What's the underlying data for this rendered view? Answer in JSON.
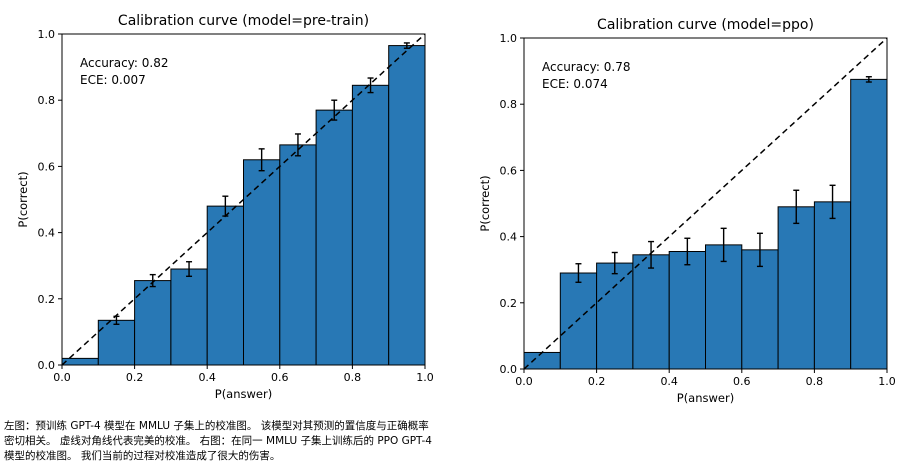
{
  "chart_data": [
    {
      "type": "bar",
      "title": "Calibration curve (model=pre-train)",
      "xlabel": "P(answer)",
      "ylabel": "P(correct)",
      "xlim": [
        0,
        1
      ],
      "ylim": [
        0,
        1
      ],
      "xticks": [
        "0.0",
        "0.2",
        "0.4",
        "0.6",
        "0.8",
        "1.0"
      ],
      "yticks": [
        "0.0",
        "0.2",
        "0.4",
        "0.6",
        "0.8",
        "1.0"
      ],
      "bin_edges": [
        0,
        0.1,
        0.2,
        0.3,
        0.4,
        0.5,
        0.6,
        0.7,
        0.8,
        0.9,
        1.0
      ],
      "values": [
        0.02,
        0.135,
        0.255,
        0.29,
        0.48,
        0.62,
        0.665,
        0.77,
        0.845,
        0.965
      ],
      "errors": [
        0,
        0.012,
        0.018,
        0.022,
        0.03,
        0.033,
        0.033,
        0.03,
        0.022,
        0.008
      ],
      "annotations": [
        "Accuracy: 0.82",
        "ECE: 0.007"
      ],
      "diagonal": "dashed",
      "bar_color": "#2878b5"
    },
    {
      "type": "bar",
      "title": "Calibration curve (model=ppo)",
      "xlabel": "P(answer)",
      "ylabel": "P(correct)",
      "xlim": [
        0,
        1
      ],
      "ylim": [
        0,
        1
      ],
      "xticks": [
        "0.0",
        "0.2",
        "0.4",
        "0.6",
        "0.8",
        "1.0"
      ],
      "yticks": [
        "0.0",
        "0.2",
        "0.4",
        "0.6",
        "0.8",
        "1.0"
      ],
      "bin_edges": [
        0,
        0.1,
        0.2,
        0.3,
        0.4,
        0.5,
        0.6,
        0.7,
        0.8,
        0.9,
        1.0
      ],
      "values": [
        0.05,
        0.29,
        0.32,
        0.345,
        0.355,
        0.375,
        0.36,
        0.49,
        0.505,
        0.875
      ],
      "errors": [
        0,
        0.028,
        0.032,
        0.04,
        0.04,
        0.05,
        0.05,
        0.05,
        0.05,
        0.008
      ],
      "annotations": [
        "Accuracy: 0.78",
        "ECE: 0.074"
      ],
      "diagonal": "dashed",
      "bar_color": "#2878b5"
    }
  ],
  "caption": {
    "lines": [
      "左图：预训练 GPT-4 模型在 MMLU 子集上的校准图。 该模型对其预测的置信度与正确概率",
      "密切相关。 虚线对角线代表完美的校准。 右图：在同一 MMLU 子集上训练后的 PPO GPT-4",
      "模型的校准图。 我们当前的过程对校准造成了很大的伤害。"
    ]
  }
}
